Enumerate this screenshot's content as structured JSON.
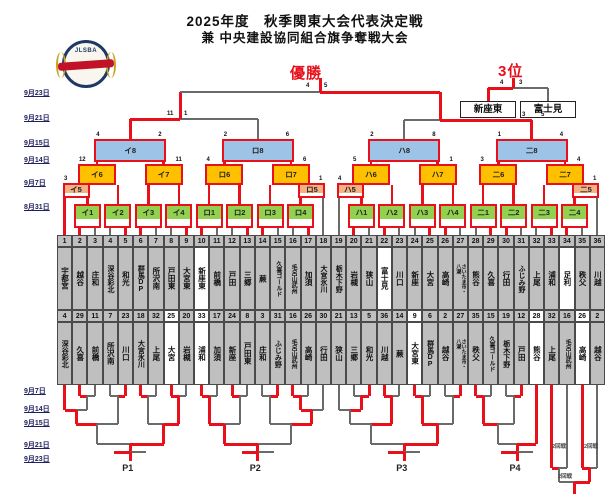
{
  "title": {
    "line1": "2025年度　秋季関東大会代表決定戦",
    "line2": "兼 中央建設協同組合旗争奪戦大会"
  },
  "labels": {
    "champion": "優勝",
    "third_place": "3位",
    "p1": "P1",
    "p2": "P2",
    "p3": "P3",
    "p4": "P4",
    "round2": "2回戦"
  },
  "dates_top": [
    "9月23日",
    "9月21日",
    "9月15日",
    "9月14日",
    "9月7日",
    "8月31日"
  ],
  "dates_bottom": [
    "9月7日",
    "9月14日",
    "9月15日",
    "9月21日",
    "9月23日"
  ],
  "third_place_match": {
    "left_team": "新座東",
    "right_team": "富士見",
    "score_left": "4",
    "score_right": "3"
  },
  "finals": {
    "final_score_left": "4",
    "final_score_right": "5",
    "semi_left_score_left": "11",
    "semi_left_score_right": "1",
    "semi_right_score_left": "3",
    "semi_right_score_right": "5"
  },
  "groups": [
    {
      "labels": [
        "イ1",
        "イ2",
        "イ3",
        "イ4",
        "イ5",
        "イ6",
        "イ7",
        "イ8"
      ],
      "scores": {
        "b5": [
          "3",
          "2"
        ],
        "b6": [
          "12",
          "2"
        ],
        "b7": [
          "2",
          "11"
        ],
        "b8": [
          "4",
          "2"
        ]
      }
    },
    {
      "labels": [
        "ロ1",
        "ロ2",
        "ロ3",
        "ロ4",
        "ロ5",
        "ロ6",
        "ロ7",
        "ロ8"
      ],
      "scores": {
        "b5": [
          "7",
          "1"
        ],
        "b6": [
          "4",
          "1"
        ],
        "b7": [
          "8",
          "6"
        ],
        "b8": [
          "2",
          "6"
        ]
      }
    },
    {
      "labels": [
        "ハ1",
        "ハ2",
        "ハ3",
        "ハ4",
        "ハ5",
        "ハ6",
        "ハ7",
        "ハ8"
      ],
      "scores": {
        "b5": [
          "4",
          "5"
        ],
        "b6": [
          "5",
          "13"
        ],
        "b7": [
          "8",
          "1"
        ],
        "b8": [
          "2",
          "8"
        ]
      }
    },
    {
      "labels": [
        "二1",
        "二2",
        "二3",
        "二4",
        "二5",
        "二6",
        "二7",
        "二8"
      ],
      "scores": {
        "b5": [
          "8",
          "1"
        ],
        "b6": [
          "3",
          "5"
        ],
        "b7": [
          "3",
          "4"
        ],
        "b8": [
          "1",
          "4"
        ]
      }
    }
  ],
  "teams": [
    {
      "n": "1",
      "t": "宇都宮",
      "n2": "4",
      "t2": "深谷彩北"
    },
    {
      "n": "2",
      "t": "越谷",
      "n2": "29",
      "t2": "久喜"
    },
    {
      "n": "3",
      "t": "庄和",
      "n2": "11",
      "t2": "前橋"
    },
    {
      "n": "4",
      "t": "深谷彩北",
      "n2": "7",
      "t2": "所沢南"
    },
    {
      "n": "5",
      "t": "和光",
      "n2": "23",
      "t2": "川口"
    },
    {
      "n": "6",
      "t": "群馬DP",
      "n2": "18",
      "t2": "大宮氷川"
    },
    {
      "n": "7",
      "t": "所沢南",
      "n2": "32",
      "t2": "上尾"
    },
    {
      "n": "8",
      "t": "戸田東",
      "n2": "25",
      "t2": "大宮",
      "w2": true
    },
    {
      "n": "9",
      "t": "大宮東",
      "n2": "20",
      "t2": "岩槻"
    },
    {
      "n": "10",
      "t": "新座東",
      "w": true,
      "n2": "33",
      "t2": "浦和",
      "w2": true
    },
    {
      "n": "11",
      "t": "前橋",
      "n2": "17",
      "t2": "加須"
    },
    {
      "n": "12",
      "t": "戸田",
      "n2": "24",
      "t2": "新座"
    },
    {
      "n": "13",
      "t": "三郷",
      "n2": "8",
      "t2": "戸田東"
    },
    {
      "n": "14",
      "t": "蕨",
      "n2": "3",
      "t2": "庄和"
    },
    {
      "n": "15",
      "t": "久喜ゴールド",
      "n2": "31",
      "t2": "ふじみ野"
    },
    {
      "n": "16",
      "t": "毛呂山武州",
      "n2": "16",
      "t2": "毛呂山武州"
    },
    {
      "n": "17",
      "t": "加須",
      "n2": "26",
      "t2": "高崎"
    },
    {
      "n": "18",
      "t": "大宮氷川",
      "n2": "30",
      "t2": "行田"
    },
    {
      "n": "19",
      "t": "栃木下野",
      "n2": "21",
      "t2": "狭山"
    },
    {
      "n": "20",
      "t": "岩槻",
      "n2": "13",
      "t2": "三郷"
    },
    {
      "n": "21",
      "t": "狭山",
      "n2": "5",
      "t2": "和光"
    },
    {
      "n": "22",
      "t": "富士見",
      "w": true,
      "n2": "36",
      "t2": "川越"
    },
    {
      "n": "23",
      "t": "川口",
      "n2": "14",
      "t2": "蕨"
    },
    {
      "n": "24",
      "t": "新座",
      "n2": "9",
      "t2": "大宮東",
      "w2": true
    },
    {
      "n": "25",
      "t": "大宮",
      "n2": "6",
      "t2": "群馬DP"
    },
    {
      "n": "26",
      "t": "高崎",
      "n2": "2",
      "t2": "越谷"
    },
    {
      "n": "27",
      "t": "さいたま市・八潮",
      "n2": "27",
      "t2": "さいたま市・八潮"
    },
    {
      "n": "28",
      "t": "熊谷",
      "n2": "35",
      "t2": "秩父"
    },
    {
      "n": "29",
      "t": "久喜",
      "n2": "15",
      "t2": "久喜ゴールド"
    },
    {
      "n": "30",
      "t": "行田",
      "n2": "19",
      "t2": "栃木下野"
    },
    {
      "n": "31",
      "t": "ふじみ野",
      "n2": "12",
      "t2": "戸田"
    },
    {
      "n": "32",
      "t": "上尾",
      "n2": "28",
      "t2": "熊谷",
      "w2": true
    },
    {
      "n": "33",
      "t": "浦和",
      "n2": "32",
      "t2": "上尾"
    },
    {
      "n": "34",
      "t": "足利",
      "w": true,
      "n2": "16",
      "t2": "毛呂山武州"
    },
    {
      "n": "35",
      "t": "秩父",
      "n2": "26",
      "t2": "高崎",
      "w2": true
    },
    {
      "n": "36",
      "t": "川越",
      "n2": "2",
      "t2": "越谷"
    }
  ],
  "colors": {
    "red": "#e8101a",
    "grey_line": "#6a6a6a",
    "green": "#92d050",
    "orange": "#ffc000",
    "salmon": "#f4b183",
    "blue": "#9dc3e6",
    "cell_grey": "#bfbfbf",
    "highlight": "#ffffff"
  }
}
